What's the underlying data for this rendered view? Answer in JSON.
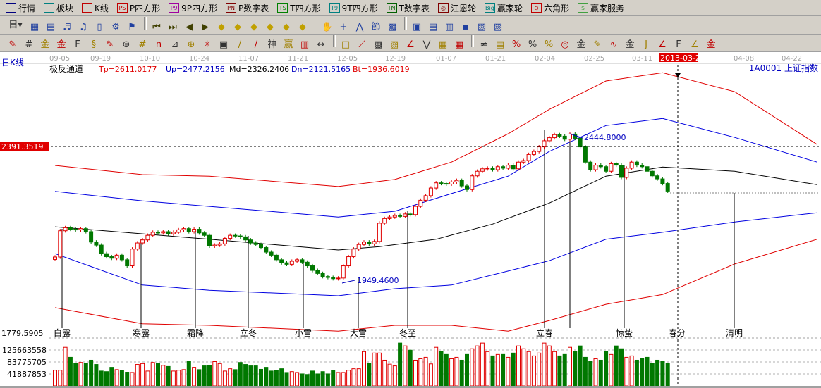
{
  "menu": [
    {
      "label": "行情",
      "icon": "quote-table-icon",
      "color": "#000080"
    },
    {
      "label": "板块",
      "icon": "sector-grid-icon",
      "color": "#008080"
    },
    {
      "label": "K线",
      "icon": "kline-icon",
      "color": "#c00000"
    },
    {
      "label": "P四方形",
      "icon": "ps-icon",
      "color": "#c00000",
      "tag": "PS"
    },
    {
      "label": "9P四方形",
      "icon": "p9-icon",
      "color": "#a000a0",
      "tag": "P9"
    },
    {
      "label": "P数字表",
      "icon": "pn-icon",
      "color": "#800000",
      "tag": "PN"
    },
    {
      "label": "T四方形",
      "icon": "ts-icon",
      "color": "#008000",
      "tag": "TS"
    },
    {
      "label": "9T四方形",
      "icon": "t9-icon",
      "color": "#008080",
      "tag": "T9"
    },
    {
      "label": "T数字表",
      "icon": "tn-icon",
      "color": "#006000",
      "tag": "TN"
    },
    {
      "label": "江恩轮",
      "icon": "gann-wheel-icon",
      "color": "#800000",
      "tag": "◎"
    },
    {
      "label": "赢家轮",
      "icon": "winner-wheel-icon",
      "color": "#008080",
      "tag": "Big"
    },
    {
      "label": "六角形",
      "icon": "hexagon-icon",
      "color": "#c00000",
      "tag": "⊙"
    },
    {
      "label": "赢家服务",
      "icon": "dollar-icon",
      "color": "#40a040",
      "tag": "$"
    }
  ],
  "toolbar2": {
    "period": "日",
    "icons": [
      "chart-type-icon",
      "notes-icon",
      "p3-icon",
      "p9-icon",
      "candle-icon",
      "indicator-icon",
      "flag-icon",
      "first-icon",
      "last-icon",
      "left-icon",
      "right-icon",
      "zoom-left-icon",
      "zoom-right-icon",
      "zoom-h-icon",
      "shrink-icon",
      "expand-icon",
      "zoom-all-icon",
      "hand-icon",
      "crosshair-icon",
      "line-icon",
      "festival-icon",
      "solar-term-icon",
      "calendar-icon",
      "calculator-icon",
      "report-icon",
      "save-icon",
      "network-icon",
      "print-icon"
    ]
  },
  "toolbar3": {
    "icons": [
      "pen-icon",
      "grid-icon",
      "gold-icon",
      "gold2-icon",
      "fib-icon",
      "spiral-icon",
      "rocket-icon",
      "circle-icon",
      "hash-icon",
      "n2-icon",
      "angle-icon",
      "target-icon",
      "star-icon",
      "square-icon",
      "parallel-icon",
      "god-icon",
      "win-icon",
      "ruler-icon",
      "width-icon",
      "box-icon",
      "fan-icon",
      "square-fan-icon",
      "box-fan-icon",
      "angle2-icon",
      "wave-icon",
      "mesh-icon",
      "mesh2-icon",
      "slash-icon",
      "bars-icon",
      "percent-line-icon",
      "percent-icon",
      "percent2-icon",
      "gold-circle-icon",
      "gold-line-icon",
      "pen2-icon",
      "sine-icon",
      "gold3-icon",
      "j-angle-icon",
      "f-angle-icon",
      "gold-angle-icon",
      "god-angle-icon",
      "win-angle-icon",
      "four-angle-icon"
    ]
  },
  "chart": {
    "period_label": "日K线",
    "indicator": "极反通道",
    "tp": "Tp=2611.0177",
    "up": "Up=2477.2156",
    "md": "Md=2326.2406",
    "dn": "Dn=2121.5165",
    "bt": "Bt=1936.6019",
    "symbol": "1A0001  上证指数",
    "cursor_price": "2391.3519",
    "cursor_date": "2013-03-20",
    "high_note": "2444.8000",
    "low_note": "1949.4600",
    "bottom_price": "1779.5905",
    "dates": [
      "09-05",
      "09-19",
      "10-10",
      "10-24",
      "11-07",
      "11-21",
      "12-05",
      "12-19",
      "01-07",
      "01-21",
      "02-04",
      "02-25",
      "03-11",
      "04-08",
      "04-22"
    ],
    "terms": [
      "白露",
      "寒露",
      "霜降",
      "立冬",
      "小雪",
      "大雪",
      "冬至",
      "立春",
      "惊蛰",
      "春分",
      "清明"
    ],
    "volume_ticks": [
      "125663558",
      "83775705",
      "41887853"
    ]
  },
  "colors": {
    "up": "#e00000",
    "down": "#007800",
    "channel_outer": "#e00000",
    "channel_inner": "#0000e0",
    "middle": "#000000"
  },
  "chart_data": {
    "type": "candlestick",
    "ylim": [
      1779.5905,
      2650
    ],
    "close": [
      2029,
      2115,
      2125,
      2120,
      2118,
      2122,
      2112,
      2078,
      2068,
      2040,
      2030,
      2025,
      2035,
      2020,
      2000,
      2055,
      2075,
      2085,
      2100,
      2110,
      2108,
      2112,
      2105,
      2110,
      2118,
      2122,
      2112,
      2120,
      2108,
      2100,
      2065,
      2068,
      2072,
      2090,
      2100,
      2098,
      2095,
      2085,
      2075,
      2070,
      2060,
      2045,
      2035,
      2020,
      2010,
      2005,
      2015,
      2020,
      2012,
      2000,
      1985,
      1975,
      1965,
      1962,
      1958,
      1960,
      2000,
      2030,
      2055,
      2070,
      2078,
      2072,
      2080,
      2140,
      2155,
      2160,
      2165,
      2162,
      2170,
      2168,
      2195,
      2215,
      2230,
      2255,
      2272,
      2270,
      2268,
      2275,
      2280,
      2262,
      2250,
      2295,
      2310,
      2318,
      2320,
      2315,
      2325,
      2320,
      2330,
      2318,
      2340,
      2345,
      2365,
      2375,
      2390,
      2410,
      2420,
      2430,
      2425,
      2415,
      2432,
      2418,
      2390,
      2340,
      2315,
      2330,
      2325,
      2310,
      2335,
      2330,
      2290,
      2320,
      2340,
      2330,
      2325,
      2310,
      2295,
      2285,
      2270,
      2245
    ],
    "volume_millions": [
      55,
      55,
      135,
      100,
      80,
      82,
      78,
      90,
      75,
      52,
      50,
      65,
      57,
      55,
      48,
      47,
      75,
      78,
      52,
      82,
      78,
      72,
      68,
      52,
      55,
      57,
      85,
      65,
      57,
      70,
      72,
      85,
      78,
      52,
      60,
      57,
      82,
      75,
      70,
      70,
      58,
      65,
      52,
      54,
      60,
      47,
      50,
      47,
      42,
      40,
      52,
      42,
      50,
      42,
      55,
      47,
      47,
      55,
      60,
      60,
      120,
      80,
      115,
      115,
      90,
      76,
      70,
      150,
      140,
      125,
      90,
      95,
      100,
      77,
      135,
      120,
      110,
      95,
      100,
      90,
      110,
      130,
      140,
      150,
      120,
      105,
      110,
      110,
      100,
      115,
      140,
      130,
      120,
      105,
      115,
      150,
      140,
      120,
      105,
      110,
      135,
      120,
      140,
      100,
      85,
      95,
      90,
      120,
      110,
      140,
      130,
      100,
      105,
      90,
      95,
      100,
      80,
      90,
      85,
      80
    ],
    "channels": {
      "Tp": [
        [
          0,
          2329
        ],
        [
          17,
          2299
        ],
        [
          30,
          2294
        ],
        [
          55,
          2260
        ],
        [
          66,
          2283
        ],
        [
          77,
          2340
        ],
        [
          88,
          2433
        ],
        [
          96,
          2513
        ],
        [
          107,
          2606
        ],
        [
          118,
          2633
        ],
        [
          132,
          2571
        ],
        [
          148,
          2398
        ]
      ],
      "Up": [
        [
          0,
          2244
        ],
        [
          17,
          2213
        ],
        [
          30,
          2195
        ],
        [
          55,
          2160
        ],
        [
          66,
          2179
        ],
        [
          77,
          2237
        ],
        [
          88,
          2294
        ],
        [
          96,
          2375
        ],
        [
          107,
          2460
        ],
        [
          118,
          2483
        ],
        [
          132,
          2421
        ],
        [
          148,
          2340
        ]
      ],
      "Md": [
        [
          0,
          2128
        ],
        [
          30,
          2087
        ],
        [
          55,
          2052
        ],
        [
          63,
          2063
        ],
        [
          74,
          2087
        ],
        [
          85,
          2137
        ],
        [
          96,
          2206
        ],
        [
          107,
          2294
        ],
        [
          118,
          2324
        ],
        [
          132,
          2310
        ],
        [
          148,
          2266
        ]
      ],
      "Dn": [
        [
          0,
          2040
        ],
        [
          17,
          1937
        ],
        [
          30,
          1920
        ],
        [
          55,
          1902
        ],
        [
          66,
          1925
        ],
        [
          77,
          1937
        ],
        [
          88,
          1983
        ],
        [
          96,
          2017
        ],
        [
          107,
          2087
        ],
        [
          118,
          2110
        ],
        [
          132,
          2144
        ],
        [
          148,
          2174
        ]
      ],
      "Bt": [
        [
          0,
          1863
        ],
        [
          17,
          1810
        ],
        [
          30,
          1805
        ],
        [
          55,
          1786
        ],
        [
          66,
          1805
        ],
        [
          77,
          1805
        ],
        [
          88,
          1786
        ],
        [
          96,
          1821
        ],
        [
          107,
          1874
        ],
        [
          118,
          1906
        ],
        [
          132,
          2006
        ],
        [
          148,
          2087
        ]
      ]
    }
  }
}
